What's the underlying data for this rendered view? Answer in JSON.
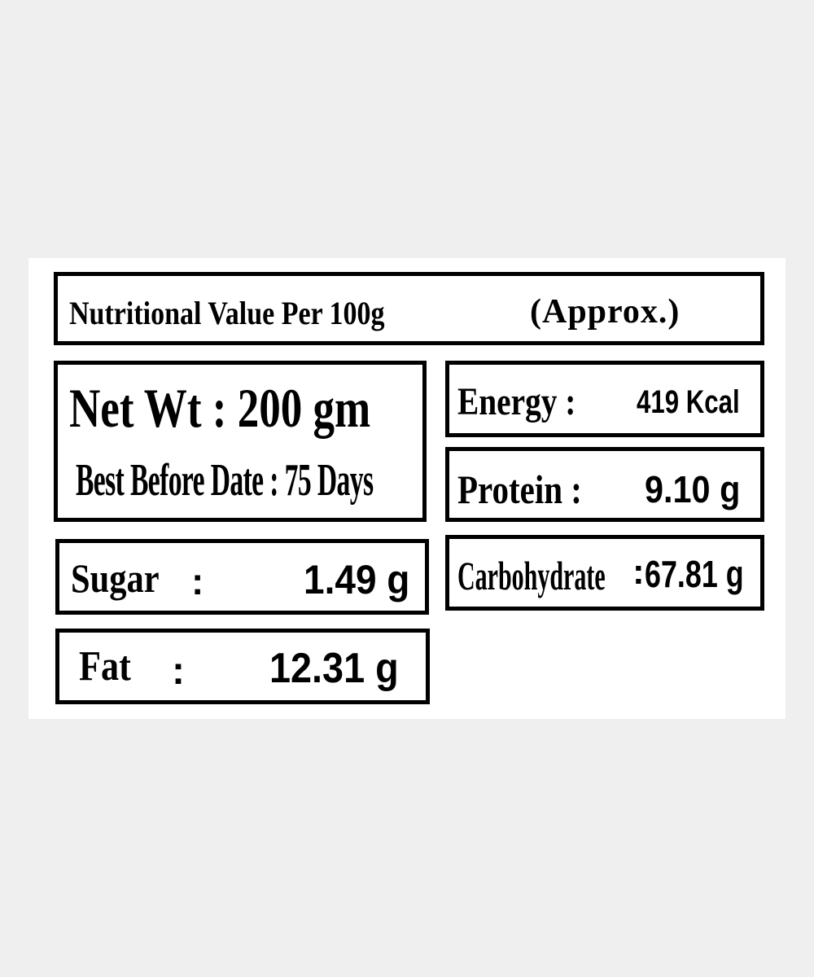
{
  "header": {
    "title": "Nutritional Value Per 100g",
    "note": "(Approx.)"
  },
  "net_weight": {
    "label": "Net Wt : 200 gm",
    "best_before": "Best Before Date : 75 Days"
  },
  "nutrients": {
    "energy": {
      "label": "Energy :",
      "value": "419 Kcal"
    },
    "protein": {
      "label": "Protein :",
      "value": "9.10 g"
    },
    "sugar": {
      "label": "Sugar",
      "colon": ":",
      "value": "1.49 g"
    },
    "carbohydrate": {
      "label": "Carbohydrate",
      "colon": ":",
      "value": "67.81 g"
    },
    "fat": {
      "label": "Fat",
      "colon": ":",
      "value": "12.31 g"
    }
  }
}
